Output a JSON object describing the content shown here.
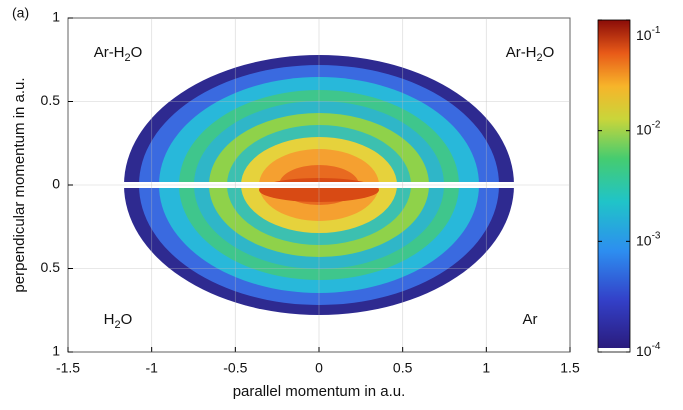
{
  "chart_data": {
    "type": "heatmap",
    "panel_label": "(a)",
    "x_label": "parallel momentum in a.u.",
    "y_label": "perpendicular momentum in a.u.",
    "xlim": [
      -1.5,
      1.5
    ],
    "xticks": [
      -1.5,
      -1,
      -0.5,
      0,
      0.5,
      1,
      1.5
    ],
    "ylim": [
      -1,
      1
    ],
    "yticks": [
      {
        "value": -1,
        "label": "1"
      },
      {
        "value": -0.5,
        "label": "0.5"
      },
      0,
      0.5,
      1
    ],
    "grid": true,
    "colorbar": {
      "scale": "log",
      "lim": [
        0.0001,
        0.1
      ],
      "ticks": [
        {
          "value": 0.1,
          "label": "10",
          "exponent": "-1"
        },
        {
          "value": 0.01,
          "label": "10",
          "exponent": "-2"
        },
        {
          "value": 0.001,
          "label": "10",
          "exponent": "-3"
        },
        {
          "value": 0.0001,
          "label": "10",
          "exponent": "-4"
        }
      ]
    },
    "annotations": [
      {
        "corner": "top-left",
        "parts": [
          "Ar-H",
          "2",
          "O"
        ]
      },
      {
        "corner": "top-right",
        "parts": [
          "Ar-H",
          "2",
          "O"
        ]
      },
      {
        "corner": "bottom-left",
        "parts": [
          "H",
          "2",
          "O"
        ]
      },
      {
        "corner": "bottom-right",
        "parts": [
          "Ar"
        ]
      }
    ]
  }
}
